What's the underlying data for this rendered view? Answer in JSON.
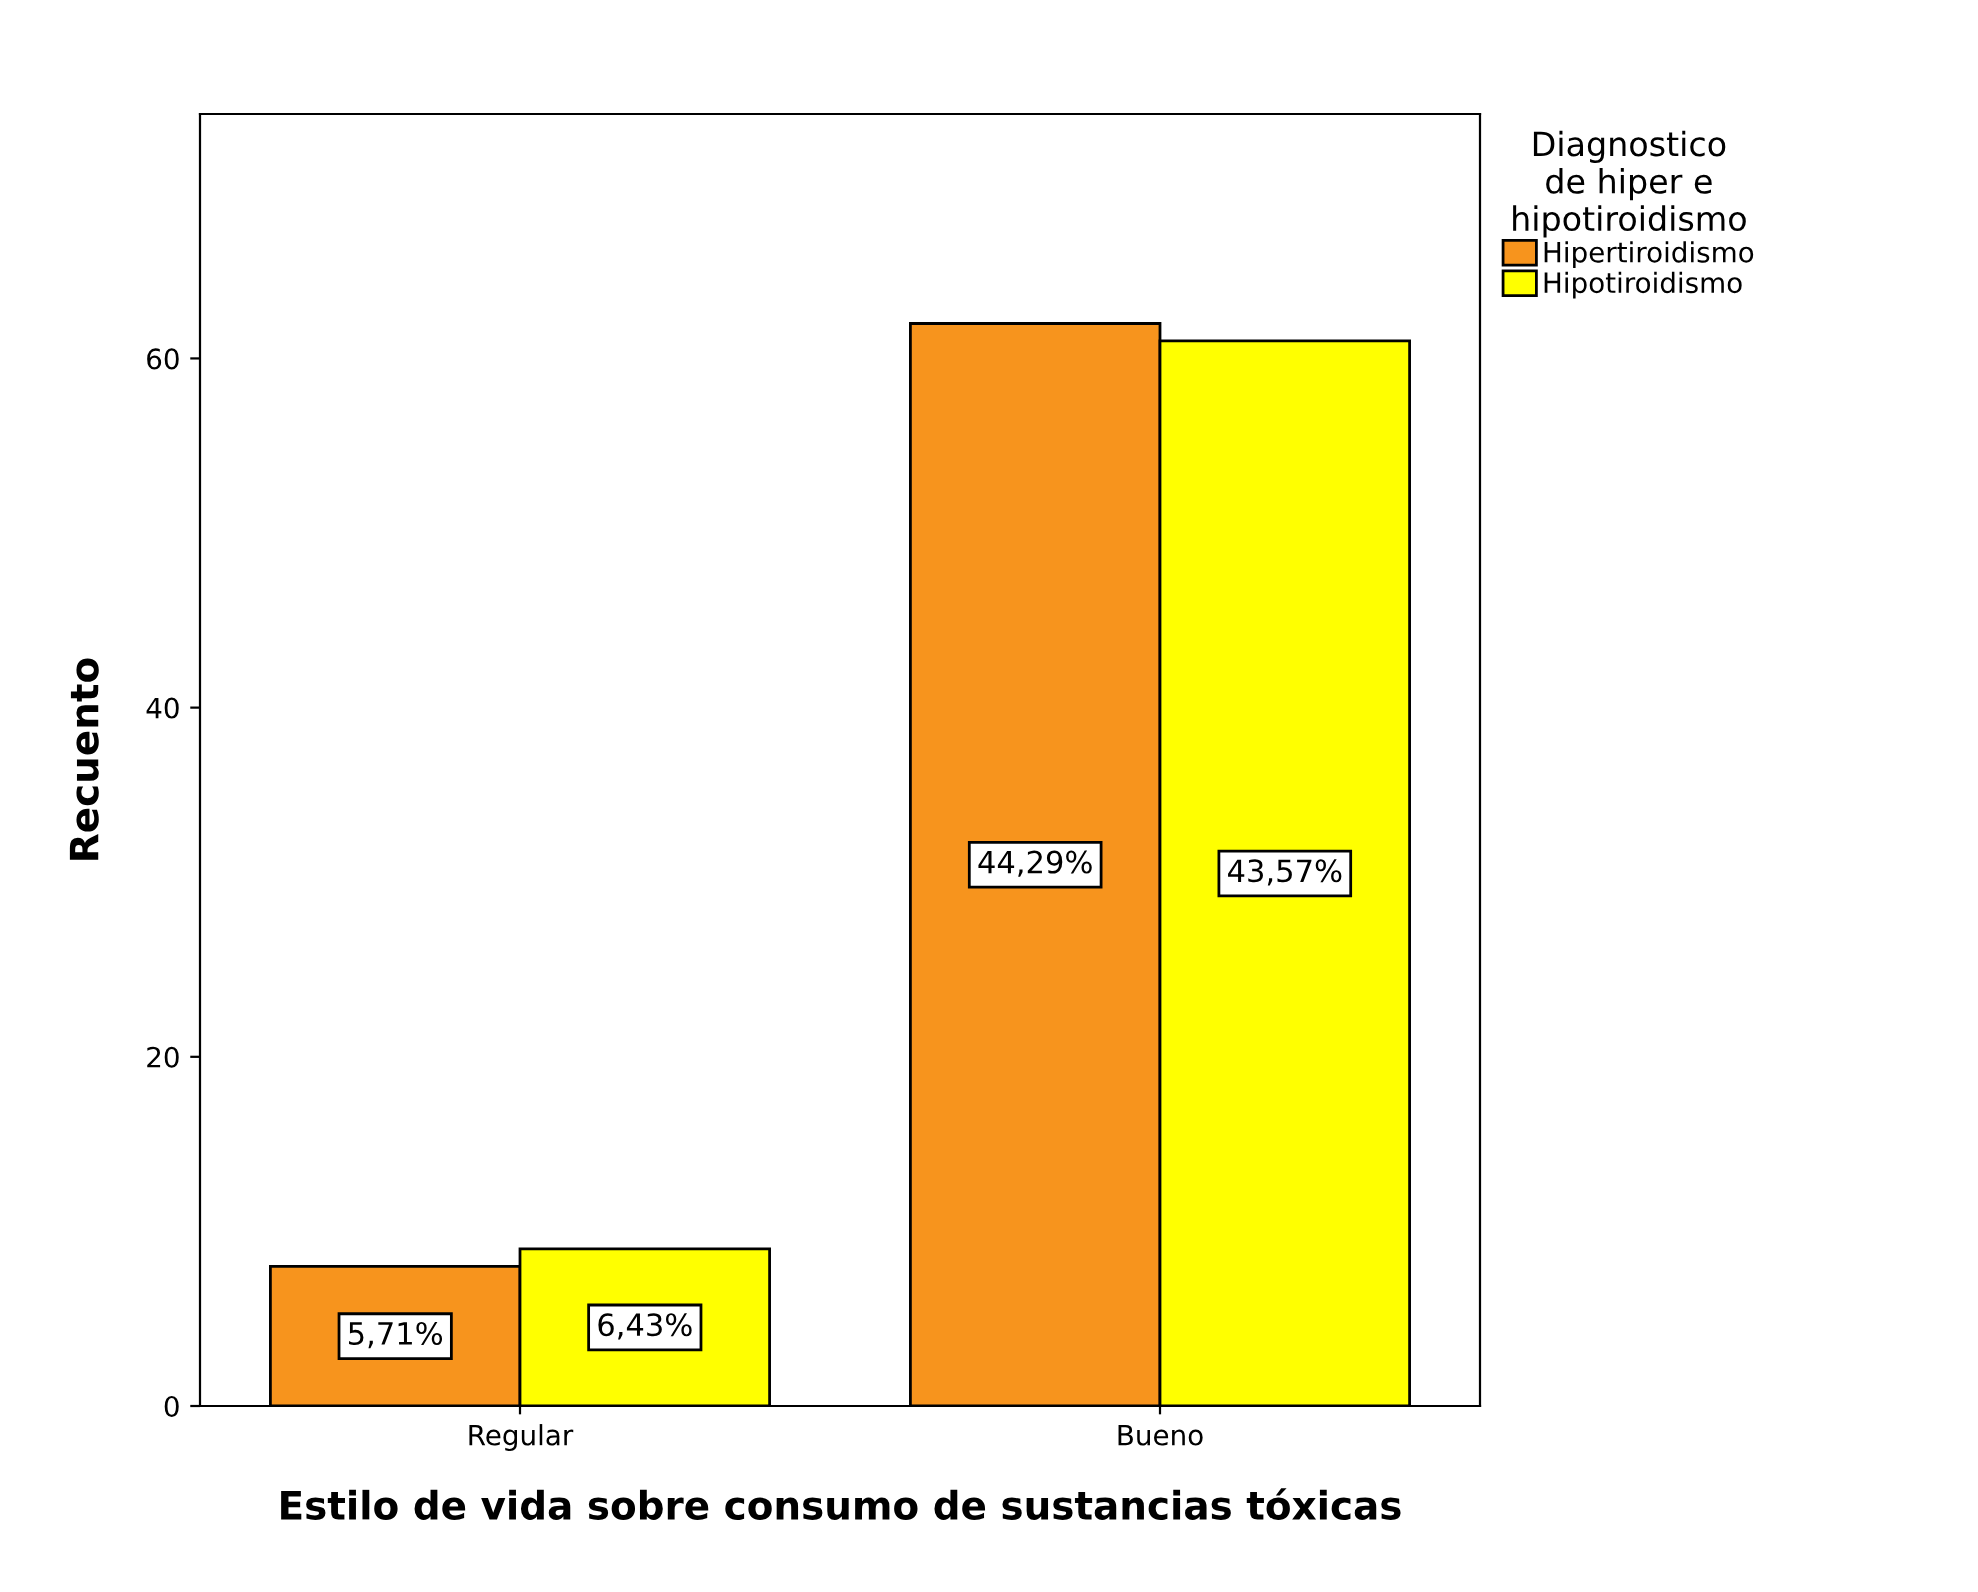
{
  "chart_data": {
    "type": "bar",
    "xlabel": "Estilo de vida sobre consumo de sustancias tóxicas",
    "ylabel": "Recuento",
    "legend_title": "Diagnostico\nde hiper e\nhipotiroidismo",
    "categories": [
      "Regular",
      "Bueno"
    ],
    "series": [
      {
        "name": "Hipertiroidismo",
        "color": "#f7941d",
        "values": [
          8,
          62
        ]
      },
      {
        "name": "Hipotiroidismo",
        "color": "#ffff00",
        "values": [
          9,
          61
        ]
      }
    ],
    "annotations": [
      {
        "text": "5,71%",
        "x": "Regular",
        "y": 4
      },
      {
        "text": "6,43%",
        "x": "Regular",
        "y": 4.5
      },
      {
        "text": "44,29%",
        "x": "Bueno",
        "y": 31
      },
      {
        "text": "43,57%",
        "x": "Bueno",
        "y": 30.5
      }
    ],
    "ylim": [
      0,
      74
    ],
    "yticks": [
      0,
      20,
      40,
      60
    ],
    "grid": false,
    "legend": "top right"
  }
}
